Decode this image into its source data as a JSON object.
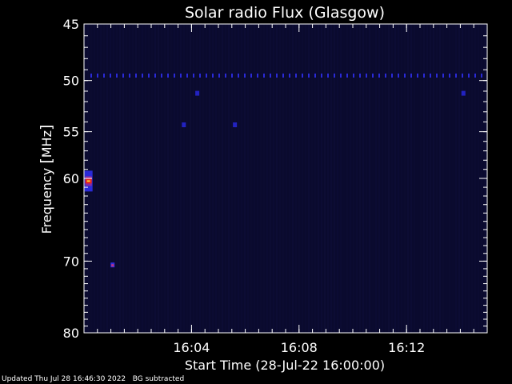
{
  "chart_data": {
    "type": "heatmap",
    "title": "Solar radio Flux (Glasgow)",
    "xlabel": "Start Time (28-Jul-22 16:00:00)",
    "ylabel_prefix": "Frequency ",
    "ylabel_unit": "MHz",
    "x_ticks": [
      {
        "minutes": 4,
        "label": "16:04"
      },
      {
        "minutes": 8,
        "label": "16:08"
      },
      {
        "minutes": 12,
        "label": "16:12"
      }
    ],
    "xlim_minutes": [
      0,
      15
    ],
    "y_ticks": [
      {
        "value": 45,
        "label": "45"
      },
      {
        "value": 50,
        "label": "50"
      },
      {
        "value": 55,
        "label": "55"
      },
      {
        "value": 60,
        "label": "60"
      },
      {
        "value": 70,
        "label": "70"
      },
      {
        "value": 80,
        "label": "80"
      }
    ],
    "ylim_mhz": [
      45,
      80
    ],
    "y_scale": "log",
    "background_color": "#0a0a2e",
    "features": [
      {
        "kind": "burst",
        "minute": 0.05,
        "mhz": 60.3,
        "intensity": "high"
      },
      {
        "kind": "spot",
        "minute": 1.05,
        "mhz": 70.5,
        "intensity": "medium"
      },
      {
        "kind": "spot",
        "minute": 3.7,
        "mhz": 54.3,
        "intensity": "low"
      },
      {
        "kind": "spot",
        "minute": 4.2,
        "mhz": 51.2,
        "intensity": "low"
      },
      {
        "kind": "spot",
        "minute": 5.6,
        "mhz": 54.3,
        "intensity": "low"
      },
      {
        "kind": "spot",
        "minute": 14.1,
        "mhz": 51.2,
        "intensity": "low"
      },
      {
        "kind": "interference_line",
        "mhz": 49.5,
        "intensity": "low"
      }
    ]
  },
  "footer": {
    "updated": "Updated Thu Jul 28 16:46:30 2022",
    "note": "BG subtracted"
  }
}
